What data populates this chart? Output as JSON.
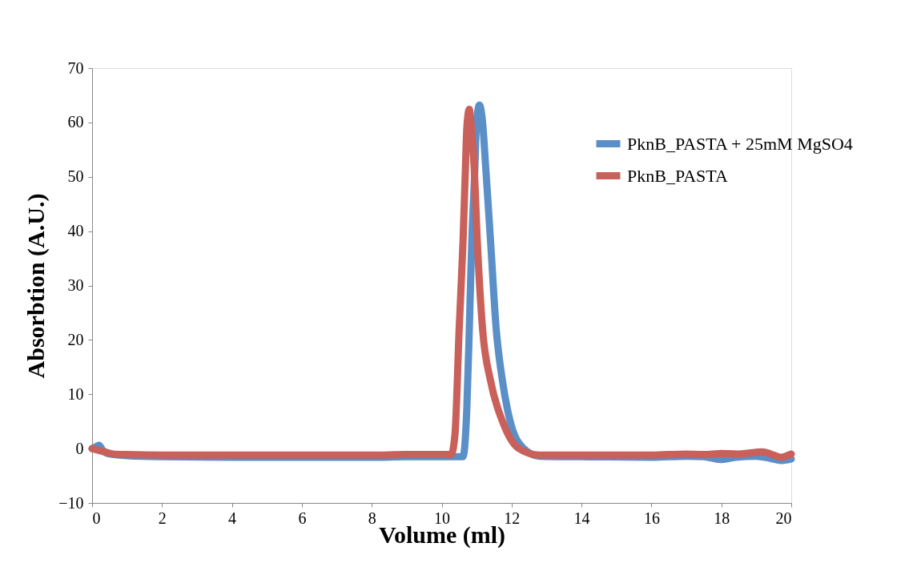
{
  "chart_data": {
    "type": "line",
    "xlabel": "Volume (ml)",
    "ylabel": "Absorbtion (A.U.)",
    "xlim": [
      0,
      20
    ],
    "ylim": [
      -10,
      70
    ],
    "xticks": [
      0,
      2,
      4,
      6,
      8,
      10,
      12,
      14,
      16,
      18,
      20
    ],
    "yticks": [
      -10,
      0,
      10,
      20,
      30,
      40,
      50,
      60,
      70
    ],
    "grid": false,
    "legend": "right",
    "marker": "none",
    "line_style": "solid",
    "series": [
      {
        "name": "PknB_PASTA + 25mM MgSO4",
        "color": "#5b8fc7",
        "x": [
          0,
          0.1,
          0.2,
          0.3,
          0.5,
          1,
          2,
          4,
          6,
          8,
          9,
          10,
          10.4,
          10.61,
          10.72,
          10.79,
          10.86,
          10.95,
          10.99,
          11.08,
          11.17,
          11.26,
          11.4,
          11.56,
          11.74,
          11.96,
          12.33,
          12.8,
          14,
          16,
          17,
          17.5,
          17.97,
          18.4,
          19,
          19.4,
          19.7,
          20
        ],
        "values": [
          0,
          0.3,
          0.6,
          -0.3,
          -1,
          -1.3,
          -1.5,
          -1.6,
          -1.6,
          -1.6,
          -1.5,
          -1.5,
          -1.5,
          -1.5,
          7.5,
          22,
          38,
          51.7,
          59,
          63.2,
          60,
          51.7,
          38,
          22,
          12.4,
          5,
          0.1,
          -1.4,
          -1.5,
          -1.6,
          -1.4,
          -1.5,
          -2,
          -1.6,
          -1.4,
          -1.8,
          -2.2,
          -1.9
        ]
      },
      {
        "name": "PknB_PASTA",
        "color": "#c9605a",
        "x": [
          0,
          0.3,
          0.6,
          1,
          2,
          4,
          6,
          8,
          9,
          10,
          10.27,
          10.38,
          10.5,
          10.61,
          10.68,
          10.72,
          10.79,
          10.86,
          10.93,
          11.02,
          11.17,
          11.4,
          11.74,
          12.19,
          12.8,
          14,
          16,
          17,
          17.5,
          18,
          18.5,
          19.18,
          19.5,
          19.7,
          20
        ],
        "values": [
          0,
          -0.5,
          -1,
          -1.1,
          -1.2,
          -1.2,
          -1.2,
          -1.2,
          -1.1,
          -1.1,
          -1.1,
          2.6,
          22,
          38,
          51.7,
          59,
          62.4,
          58,
          51.7,
          38,
          22,
          12.4,
          5,
          0.1,
          -1.2,
          -1.2,
          -1.2,
          -1,
          -1.1,
          -0.9,
          -1,
          -0.6,
          -1.2,
          -1.6,
          -1
        ]
      }
    ]
  }
}
